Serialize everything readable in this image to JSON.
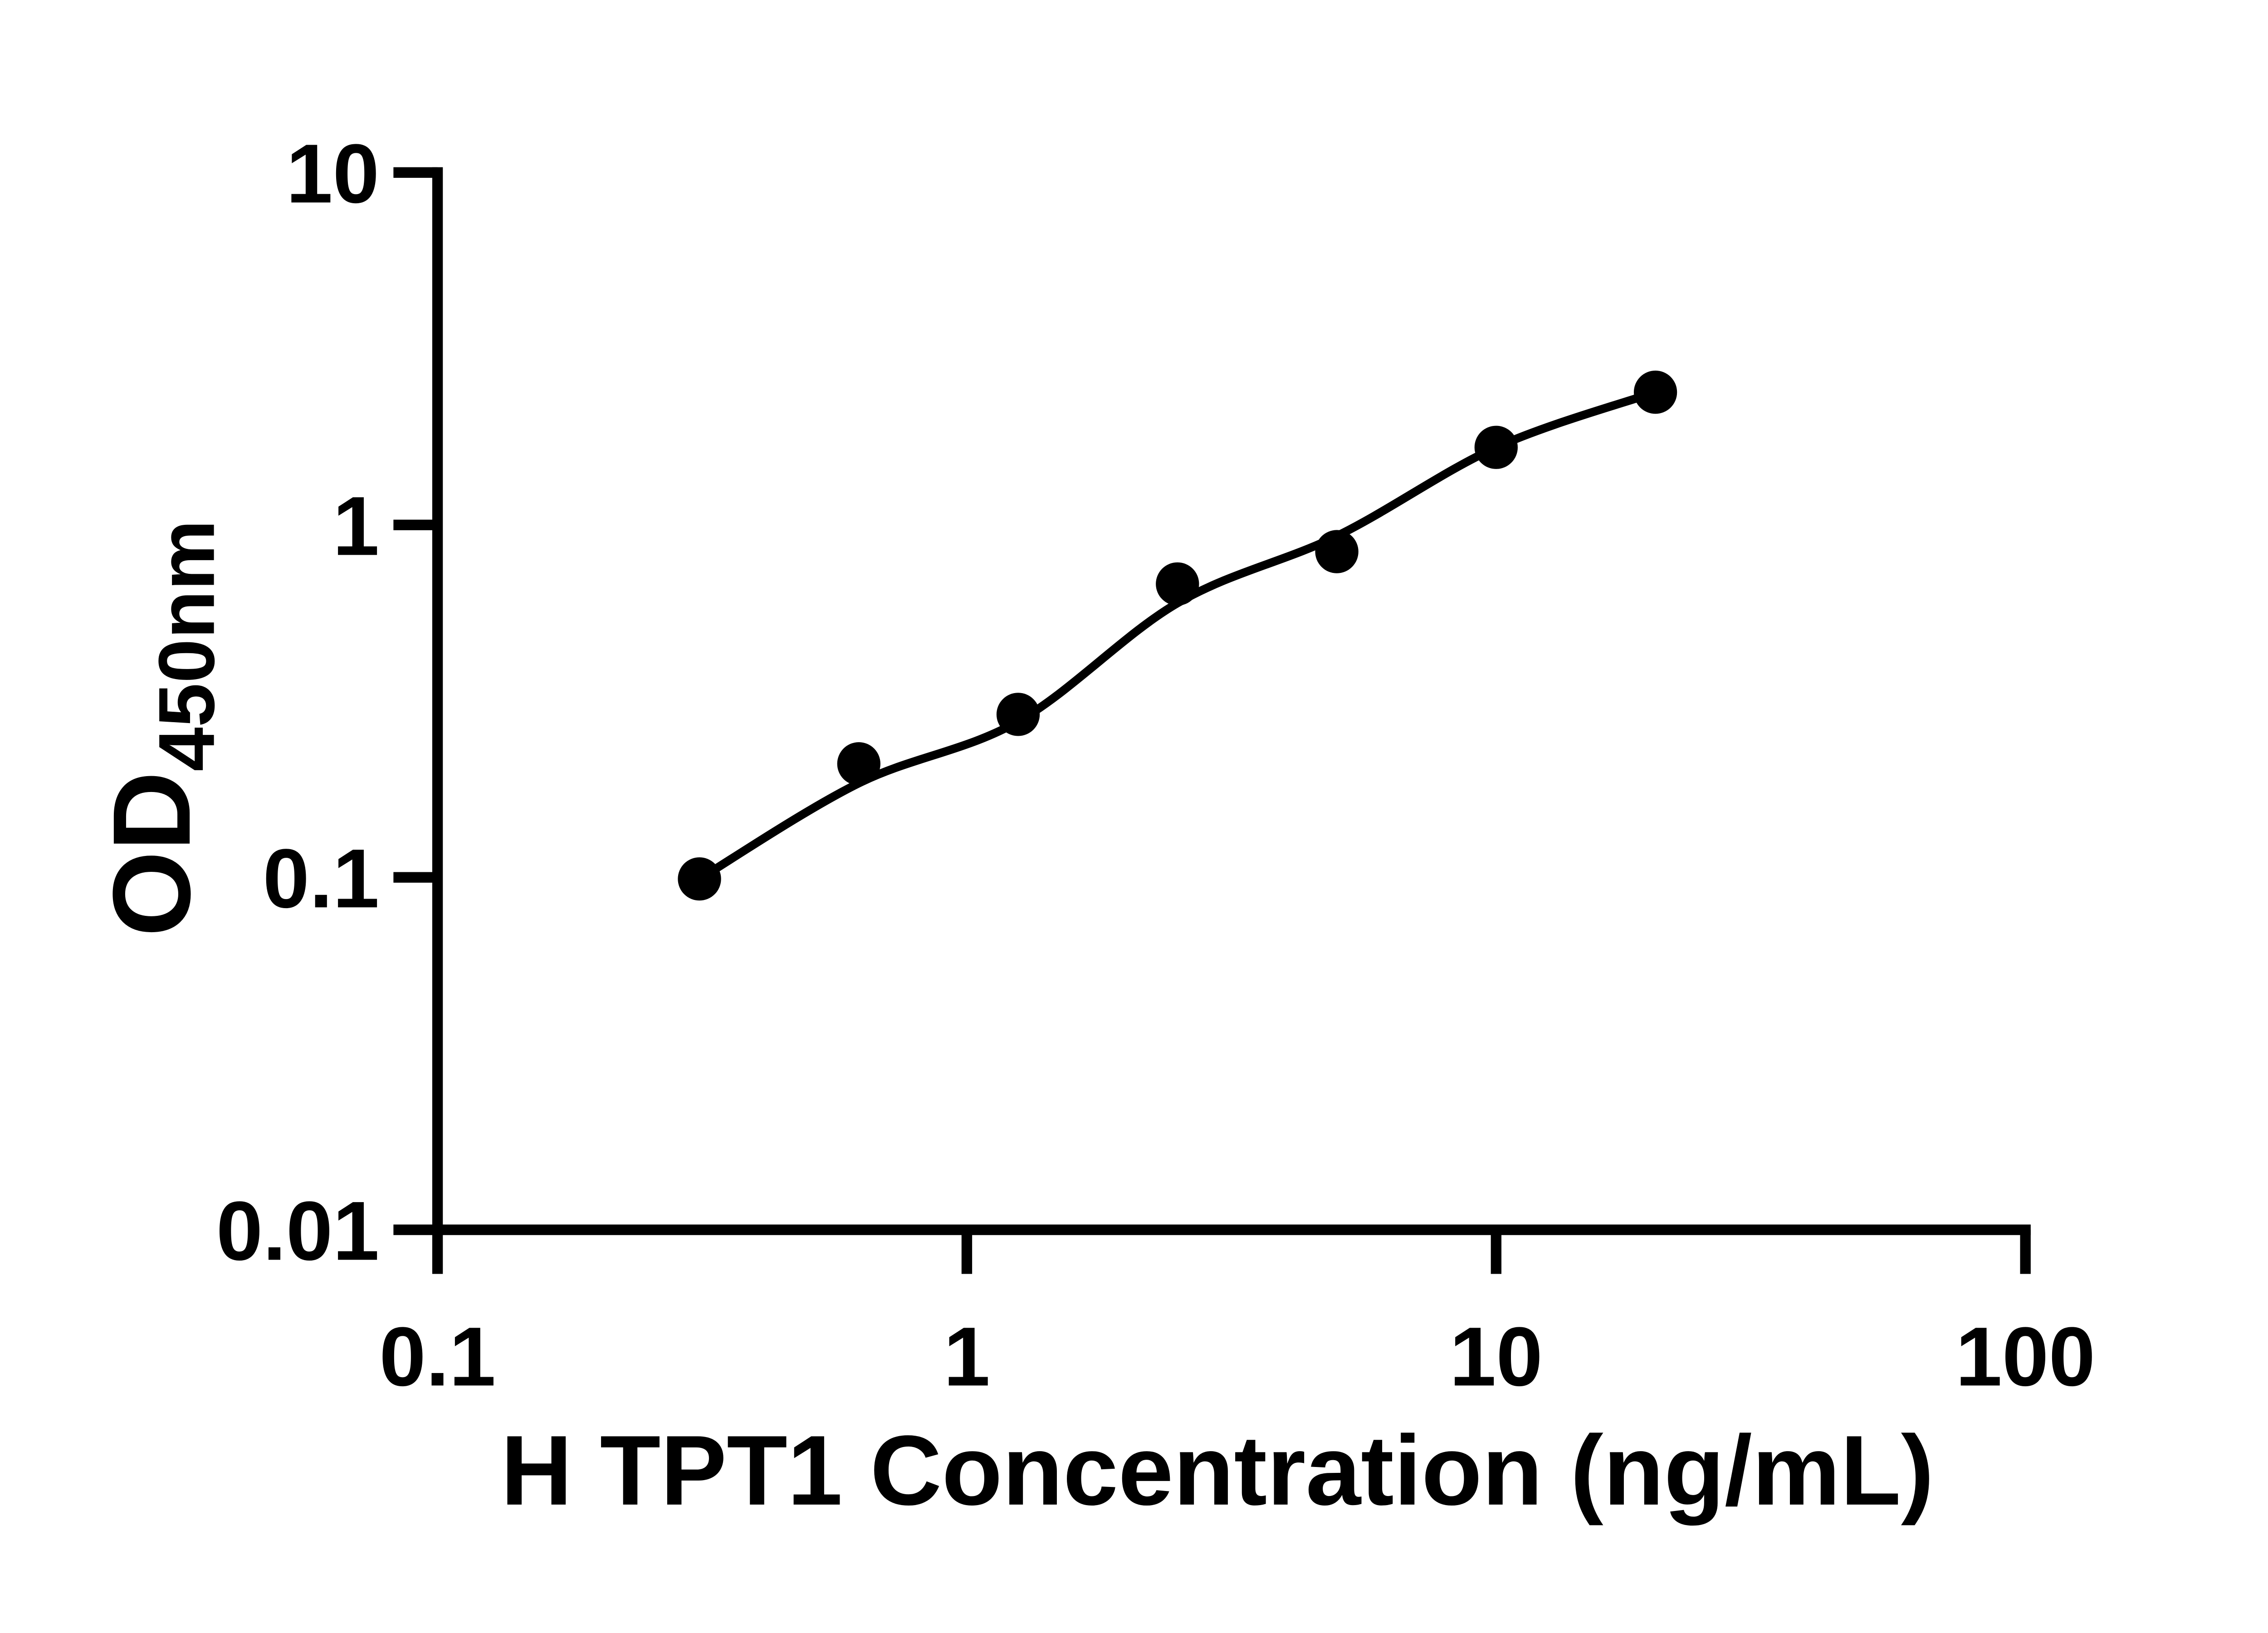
{
  "figure": {
    "background": "#ffffff",
    "ink": "#000000"
  },
  "chart_data": {
    "type": "scatter",
    "title": "",
    "xlabel": "H TPT1 Concentration (ng/mL)",
    "ylabel": "OD450nm",
    "ylabel_base": "OD",
    "ylabel_subscript": "450nm",
    "x_scale": "log",
    "y_scale": "log",
    "xlim": [
      0.1,
      100
    ],
    "ylim": [
      0.01,
      10
    ],
    "x_ticks": [
      0.1,
      1,
      10,
      100
    ],
    "x_tick_labels": [
      "0.1",
      "1",
      "10",
      "100"
    ],
    "y_ticks": [
      0.01,
      0.1,
      1,
      10
    ],
    "y_tick_labels": [
      "0.01",
      "0.1",
      "1",
      "10"
    ],
    "grid": false,
    "legend": false,
    "marker": {
      "shape": "circle",
      "color": "#000000",
      "radius_px": 49
    },
    "points": [
      {
        "x": 0.3125,
        "y": 0.099
      },
      {
        "x": 0.625,
        "y": 0.21
      },
      {
        "x": 1.25,
        "y": 0.29
      },
      {
        "x": 2.5,
        "y": 0.68
      },
      {
        "x": 5,
        "y": 0.84
      },
      {
        "x": 10,
        "y": 1.66
      },
      {
        "x": 20,
        "y": 2.38
      }
    ],
    "fit_curve": [
      {
        "x": 0.3125,
        "y": 0.099
      },
      {
        "x": 0.625,
        "y": 0.185
      },
      {
        "x": 1.25,
        "y": 0.277
      },
      {
        "x": 2.5,
        "y": 0.6
      },
      {
        "x": 5,
        "y": 0.93
      },
      {
        "x": 10,
        "y": 1.66
      },
      {
        "x": 20,
        "y": 2.38
      }
    ]
  }
}
